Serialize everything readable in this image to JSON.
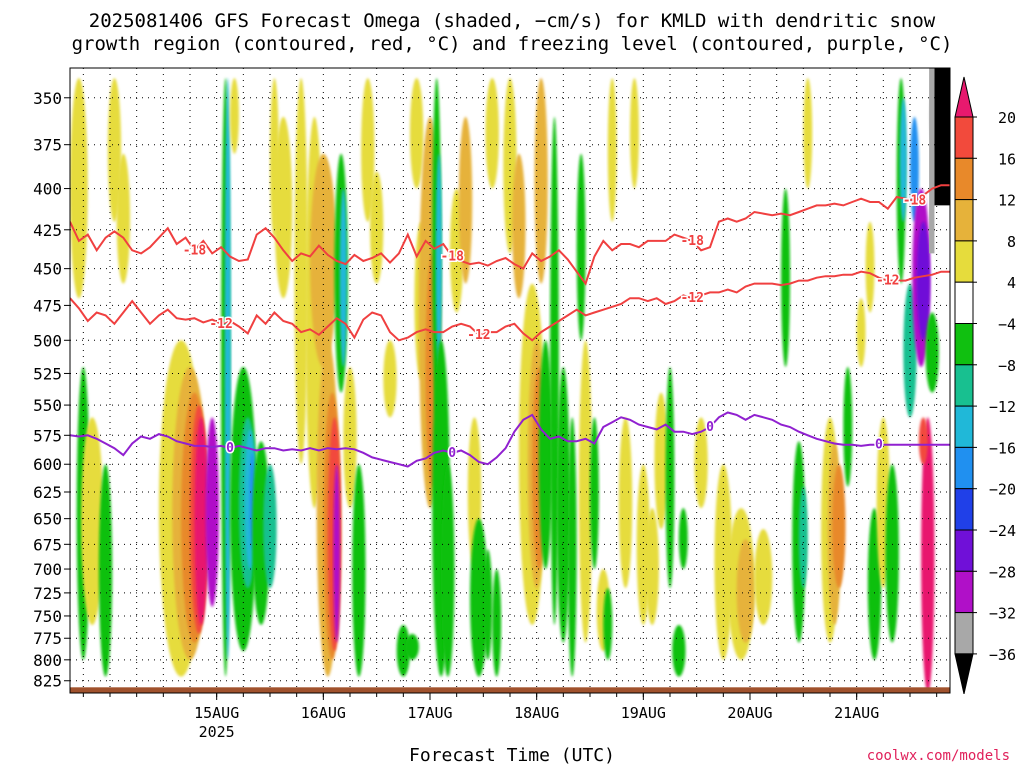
{
  "title": {
    "line1": "2025081406 GFS Forecast Omega (shaded, −cm/s) for KMLD with dendritic snow",
    "line2": "growth region (contoured, red, °C) and freezing level (contoured, purple, °C)"
  },
  "credit": "coolwx.com/models",
  "chart_data": {
    "type": "heatmap",
    "xlabel": "Forecast Time (UTC)",
    "ylabel": "",
    "x_ticks": [
      {
        "label": "15AUG",
        "sublabel": "2025",
        "hour": 18
      },
      {
        "label": "16AUG",
        "sublabel": "",
        "hour": 42
      },
      {
        "label": "17AUG",
        "sublabel": "",
        "hour": 66
      },
      {
        "label": "18AUG",
        "sublabel": "",
        "hour": 90
      },
      {
        "label": "19AUG",
        "sublabel": "",
        "hour": 114
      },
      {
        "label": "20AUG",
        "sublabel": "",
        "hour": 138
      },
      {
        "label": "21AUG",
        "sublabel": "",
        "hour": 162
      }
    ],
    "xlim_hours": [
      -15,
      183
    ],
    "y_ticks": [
      350,
      375,
      400,
      425,
      450,
      475,
      500,
      525,
      550,
      575,
      600,
      625,
      650,
      675,
      700,
      725,
      750,
      775,
      800,
      825
    ],
    "ylim_hpa": [
      335,
      840
    ],
    "y_scale": "log-pressure",
    "grid": true,
    "colorbar": {
      "labels": [
        "20",
        "16",
        "12",
        "8",
        "4",
        "−4",
        "−8",
        "−12",
        "−16",
        "−20",
        "−24",
        "−28",
        "−32",
        "−36"
      ],
      "levels": [
        20,
        16,
        12,
        8,
        4,
        -4,
        -8,
        -12,
        -16,
        -20,
        -24,
        -28,
        -32,
        -36
      ],
      "colors": [
        "#e8196e",
        "#f24a3c",
        "#e8892a",
        "#e6b23a",
        "#e6dc3c",
        "#ffffff",
        "#10c010",
        "#18c090",
        "#20b8d8",
        "#2090f0",
        "#2040e8",
        "#7010d8",
        "#b010c8",
        "#a8a8a8",
        "#000000"
      ]
    },
    "series": [
      {
        "name": "-18",
        "color": "#f04040",
        "x": [
          -15,
          -13,
          -11,
          -9,
          -7,
          -5,
          -3,
          -1,
          1,
          3,
          5,
          7,
          9,
          11,
          13,
          15,
          17,
          19,
          21,
          23,
          25,
          27,
          29,
          31,
          33,
          35,
          37,
          39,
          41,
          43,
          45,
          47,
          49,
          51,
          53,
          55,
          57,
          59,
          61,
          63,
          65,
          67,
          69,
          71,
          73,
          75,
          77,
          79,
          81,
          83,
          85,
          87,
          89,
          91,
          93,
          95,
          97,
          99,
          101,
          103,
          105,
          107,
          109,
          111,
          113,
          115,
          117,
          119,
          121,
          123,
          125,
          127,
          129,
          131,
          133,
          135,
          137,
          139,
          141,
          143,
          145,
          147,
          149,
          151,
          153,
          155,
          157,
          159,
          161,
          163,
          165,
          167,
          169,
          171,
          173,
          175,
          177,
          179,
          181,
          183
        ],
        "y": [
          420,
          432,
          428,
          438,
          430,
          426,
          430,
          438,
          440,
          436,
          430,
          424,
          434,
          430,
          438,
          432,
          440,
          436,
          442,
          445,
          444,
          428,
          424,
          430,
          438,
          445,
          440,
          442,
          435,
          441,
          445,
          447,
          441,
          445,
          443,
          440,
          446,
          440,
          428,
          442,
          432,
          437,
          434,
          442,
          445,
          447,
          446,
          448,
          445,
          443,
          447,
          450,
          440,
          445,
          442,
          438,
          444,
          452,
          460,
          442,
          432,
          438,
          434,
          434,
          436,
          432,
          432,
          432,
          428,
          430,
          432,
          438,
          436,
          420,
          418,
          420,
          418,
          414,
          415,
          416,
          415,
          416,
          414,
          412,
          410,
          410,
          409,
          410,
          408,
          406,
          408,
          408,
          412,
          405,
          406,
          407,
          404,
          400,
          398,
          398
        ]
      },
      {
        "name": "-12",
        "color": "#f04040",
        "x": [
          -15,
          -13,
          -11,
          -9,
          -7,
          -5,
          -3,
          -1,
          1,
          3,
          5,
          7,
          9,
          11,
          13,
          15,
          17,
          19,
          21,
          23,
          25,
          27,
          29,
          31,
          33,
          35,
          37,
          39,
          41,
          43,
          45,
          47,
          49,
          51,
          53,
          55,
          57,
          59,
          61,
          63,
          65,
          67,
          69,
          71,
          73,
          75,
          77,
          79,
          81,
          83,
          85,
          87,
          89,
          91,
          93,
          95,
          97,
          99,
          101,
          103,
          105,
          107,
          109,
          111,
          113,
          115,
          117,
          119,
          121,
          123,
          125,
          127,
          129,
          131,
          133,
          135,
          137,
          139,
          141,
          143,
          145,
          147,
          149,
          151,
          153,
          155,
          157,
          159,
          161,
          163,
          165,
          167,
          169,
          171,
          173,
          175,
          177,
          179,
          181,
          183
        ],
        "y": [
          470,
          477,
          486,
          480,
          482,
          488,
          480,
          472,
          480,
          488,
          482,
          478,
          484,
          485,
          484,
          487,
          485,
          488,
          486,
          490,
          495,
          482,
          488,
          480,
          486,
          488,
          494,
          492,
          496,
          490,
          484,
          488,
          498,
          485,
          480,
          482,
          494,
          500,
          498,
          494,
          492,
          494,
          494,
          490,
          488,
          490,
          496,
          494,
          494,
          490,
          488,
          495,
          500,
          494,
          490,
          486,
          482,
          478,
          482,
          480,
          478,
          476,
          474,
          470,
          470,
          472,
          470,
          474,
          472,
          468,
          470,
          468,
          466,
          466,
          464,
          466,
          462,
          460,
          460,
          460,
          461,
          460,
          458,
          458,
          456,
          455,
          455,
          454,
          454,
          452,
          453,
          456,
          458,
          458,
          458,
          456,
          455,
          454,
          452,
          452
        ]
      },
      {
        "name": "0",
        "color": "#9020d0",
        "x": [
          -15,
          -13,
          -11,
          -9,
          -7,
          -5,
          -3,
          -1,
          1,
          3,
          5,
          7,
          9,
          11,
          13,
          15,
          17,
          19,
          21,
          23,
          25,
          27,
          29,
          31,
          33,
          35,
          37,
          39,
          41,
          43,
          45,
          47,
          49,
          51,
          53,
          55,
          57,
          59,
          61,
          63,
          65,
          67,
          69,
          71,
          73,
          75,
          77,
          79,
          81,
          83,
          85,
          87,
          89,
          91,
          93,
          95,
          97,
          99,
          101,
          103,
          105,
          107,
          109,
          111,
          113,
          115,
          117,
          119,
          121,
          123,
          125,
          127,
          129,
          131,
          133,
          135,
          137,
          139,
          141,
          143,
          145,
          147,
          149,
          151,
          153,
          155,
          157,
          159,
          161,
          163,
          165,
          167,
          169,
          171,
          173,
          175,
          177,
          179,
          181,
          183
        ],
        "y": [
          575,
          576,
          575,
          578,
          582,
          586,
          592,
          582,
          576,
          578,
          574,
          576,
          580,
          582,
          584,
          584,
          585,
          584,
          586,
          584,
          586,
          588,
          586,
          586,
          588,
          587,
          588,
          586,
          588,
          586,
          587,
          586,
          587,
          590,
          594,
          596,
          598,
          600,
          602,
          597,
          595,
          590,
          588,
          590,
          588,
          592,
          598,
          600,
          594,
          586,
          572,
          562,
          558,
          570,
          578,
          576,
          580,
          580,
          578,
          582,
          568,
          564,
          560,
          562,
          566,
          568,
          570,
          566,
          572,
          572,
          574,
          572,
          568,
          560,
          556,
          558,
          562,
          558,
          560,
          562,
          566,
          568,
          572,
          575,
          578,
          580,
          582,
          583,
          583,
          584,
          583,
          583,
          583,
          583,
          583,
          583,
          583,
          583,
          583,
          583
        ]
      }
    ]
  }
}
